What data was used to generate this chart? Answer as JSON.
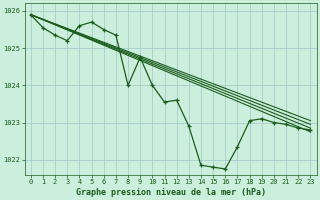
{
  "title": "Graphe pression niveau de la mer (hPa)",
  "background_color": "#cceedd",
  "plot_bg_color": "#cceedd",
  "grid_color": "#aacccc",
  "line_color": "#1a5c1a",
  "xlim": [
    -0.5,
    23.5
  ],
  "ylim": [
    1021.6,
    1026.2
  ],
  "yticks": [
    1022,
    1023,
    1024,
    1025,
    1026
  ],
  "xticks": [
    0,
    1,
    2,
    3,
    4,
    5,
    6,
    7,
    8,
    9,
    10,
    11,
    12,
    13,
    14,
    15,
    16,
    17,
    18,
    19,
    20,
    21,
    22,
    23
  ],
  "straight_lines": [
    [
      [
        0,
        1025.9
      ],
      [
        23,
        1022.75
      ]
    ],
    [
      [
        0,
        1025.9
      ],
      [
        23,
        1022.85
      ]
    ],
    [
      [
        0,
        1025.9
      ],
      [
        23,
        1022.95
      ]
    ],
    [
      [
        0,
        1025.9
      ],
      [
        23,
        1023.05
      ]
    ]
  ],
  "main_x": [
    0,
    1,
    2,
    3,
    4,
    5,
    6,
    7,
    8,
    9,
    10,
    11,
    12,
    13,
    14,
    15,
    16,
    17,
    18,
    19,
    20,
    21,
    22,
    23
  ],
  "main_y": [
    1025.9,
    1025.55,
    1025.35,
    1025.2,
    1025.6,
    1025.7,
    1025.5,
    1025.35,
    1024.0,
    1024.75,
    1024.0,
    1023.55,
    1023.6,
    1022.9,
    1021.85,
    1021.8,
    1021.75,
    1022.35,
    1023.05,
    1023.1,
    1023.0,
    1022.95,
    1022.85,
    1022.8
  ]
}
